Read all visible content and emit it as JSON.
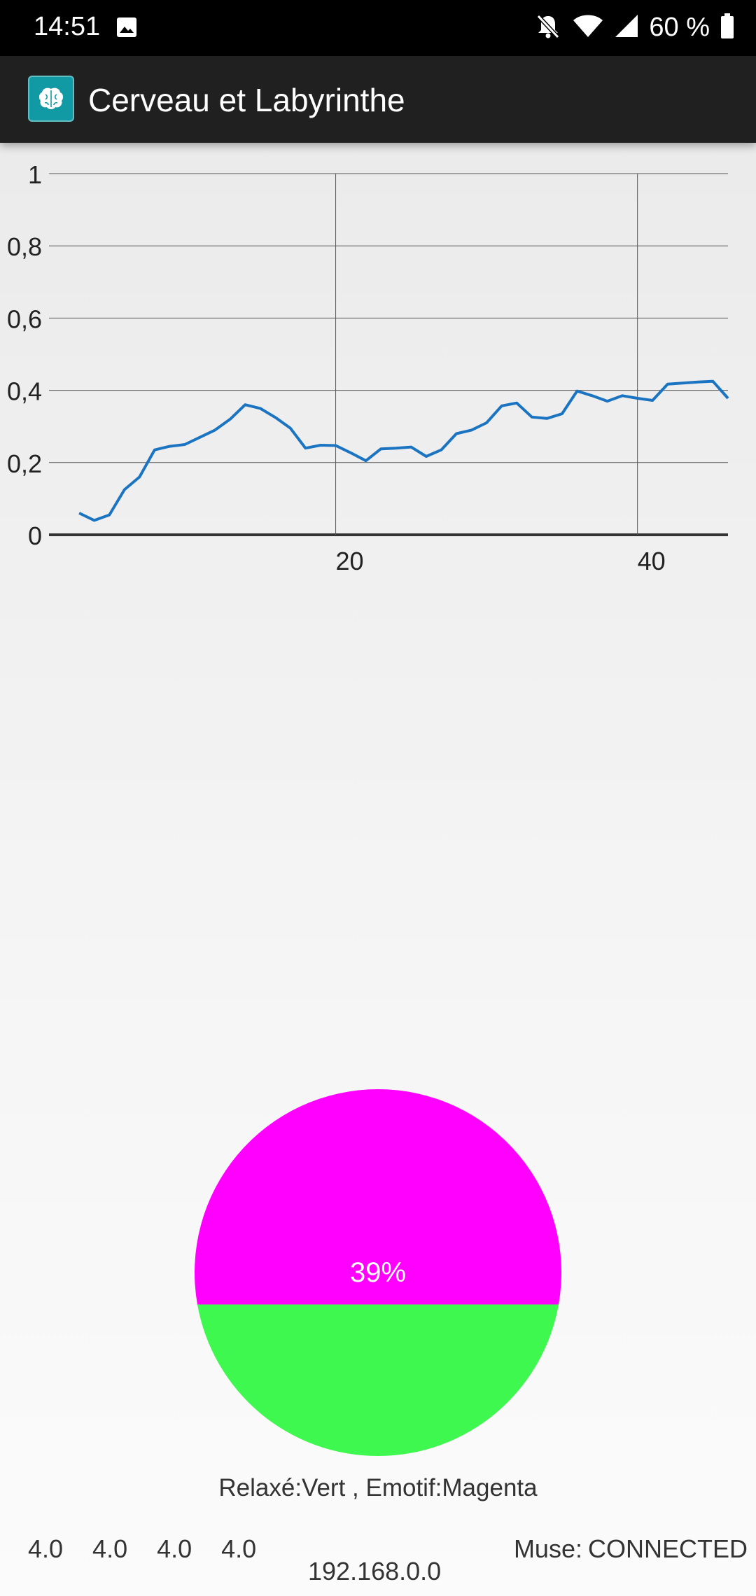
{
  "status_bar": {
    "time": "14:51",
    "battery": "60 %",
    "icons": [
      "image-icon",
      "bell-off-icon",
      "wifi-icon",
      "signal-icon",
      "battery-icon"
    ]
  },
  "app_bar": {
    "title": "Cerveau et Labyrinthe",
    "icon": "brain-icon",
    "icon_color": "#129aa4"
  },
  "chart_data": {
    "type": "line",
    "series": [
      {
        "color": "#1a74c2",
        "points": [
          [
            3,
            0.06
          ],
          [
            4,
            0.04
          ],
          [
            5,
            0.055
          ],
          [
            6,
            0.125
          ],
          [
            7,
            0.16
          ],
          [
            8,
            0.235
          ],
          [
            9,
            0.245
          ],
          [
            10,
            0.25
          ],
          [
            11,
            0.27
          ],
          [
            12,
            0.29
          ],
          [
            13,
            0.32
          ],
          [
            14,
            0.36
          ],
          [
            15,
            0.35
          ],
          [
            16,
            0.325
          ],
          [
            17,
            0.295
          ],
          [
            18,
            0.24
          ],
          [
            19,
            0.248
          ],
          [
            20,
            0.247
          ],
          [
            21,
            0.227
          ],
          [
            22,
            0.205
          ],
          [
            23,
            0.238
          ],
          [
            24,
            0.24
          ],
          [
            25,
            0.243
          ],
          [
            26,
            0.217
          ],
          [
            27,
            0.235
          ],
          [
            28,
            0.28
          ],
          [
            29,
            0.29
          ],
          [
            30,
            0.31
          ],
          [
            31,
            0.357
          ],
          [
            32,
            0.365
          ],
          [
            33,
            0.326
          ],
          [
            34,
            0.322
          ],
          [
            35,
            0.335
          ],
          [
            36,
            0.398
          ],
          [
            37,
            0.385
          ],
          [
            38,
            0.37
          ],
          [
            39,
            0.385
          ],
          [
            40,
            0.378
          ],
          [
            41,
            0.372
          ],
          [
            42,
            0.417
          ],
          [
            43,
            0.42
          ],
          [
            44,
            0.423
          ],
          [
            45,
            0.425
          ],
          [
            46,
            0.378
          ]
        ]
      }
    ],
    "xlim": [
      1,
      46
    ],
    "ylim": [
      0,
      1
    ],
    "x_ticks": [
      20,
      40
    ],
    "y_ticks": [
      "0",
      "0,2",
      "0,4",
      "0,6",
      "0,8",
      "1"
    ],
    "grid": true
  },
  "pie": {
    "emotif_percent": 39,
    "label": "39%",
    "colors": {
      "emotif": "#ff00ff",
      "relaxe": "#3ef74f"
    }
  },
  "legend_text": "Relaxé:Vert , Emotif:Magenta",
  "values": [
    "4.0",
    "4.0",
    "4.0",
    "4.0"
  ],
  "ip": "192.168.0.0",
  "muse": {
    "label": "Muse:",
    "status": "CONNECTED"
  }
}
